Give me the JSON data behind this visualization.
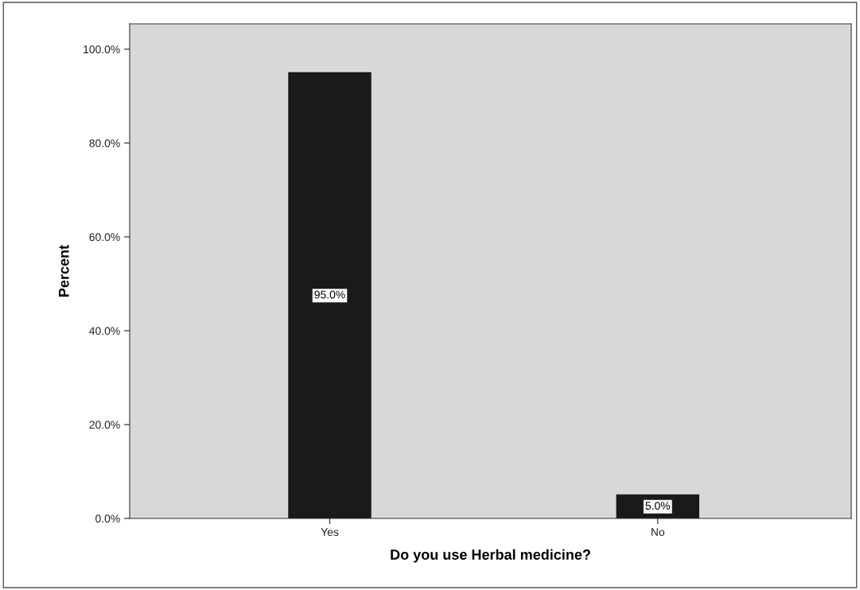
{
  "chart_data": {
    "type": "bar",
    "xlabel": "Do you use Herbal medicine?",
    "ylabel": "Percent",
    "categories": [
      "Yes",
      "No"
    ],
    "values": [
      95.0,
      5.0
    ],
    "color": "#1a1a1a",
    "value_labels": [
      "95.0%",
      "5.0%"
    ],
    "ylim": [
      0,
      105.4
    ],
    "yticks": [
      {
        "value": 0,
        "label": "0.0%"
      },
      {
        "value": 20,
        "label": "20.0%"
      },
      {
        "value": 40,
        "label": "40.0%"
      },
      {
        "value": 60,
        "label": "60.0%"
      },
      {
        "value": 80,
        "label": "80.0%"
      },
      {
        "value": 100,
        "label": "100.0%"
      }
    ],
    "grid": false
  }
}
